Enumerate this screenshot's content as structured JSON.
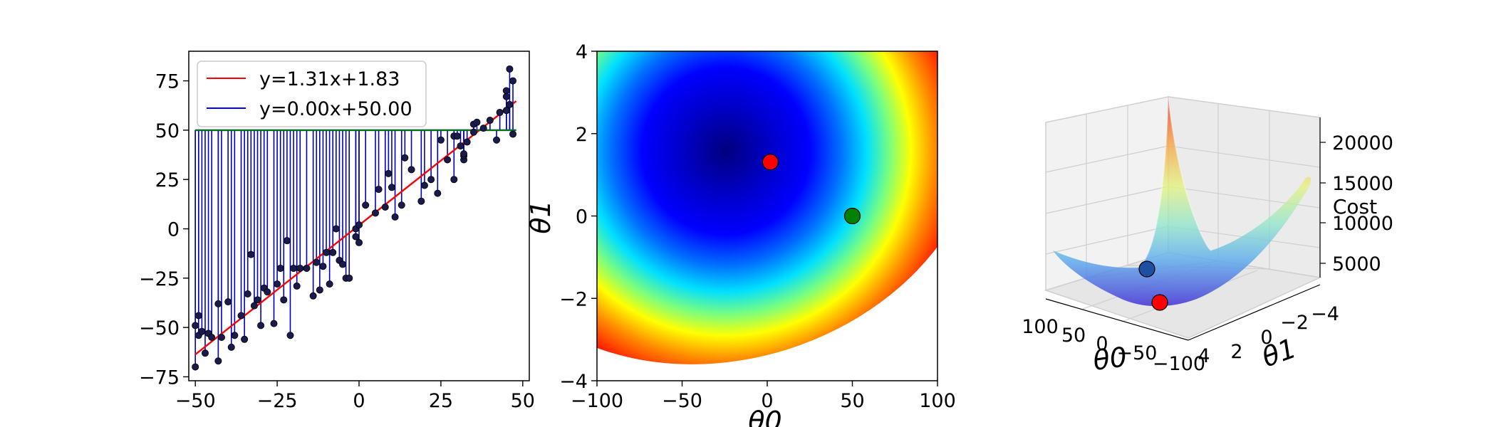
{
  "chart_data": [
    {
      "type": "scatter",
      "xlim": [
        -52,
        52
      ],
      "ylim": [
        -77,
        90
      ],
      "x_ticks": [
        -50,
        -25,
        0,
        25,
        50
      ],
      "x_tick_labels": [
        "−50",
        "−25",
        "0",
        "25",
        "50"
      ],
      "y_ticks": [
        -75,
        -50,
        -25,
        0,
        25,
        50,
        75
      ],
      "y_tick_labels": [
        "−75",
        "−50",
        "−25",
        "0",
        "25",
        "50",
        "75"
      ],
      "grid": false,
      "legend_position": "top-left",
      "legend": [
        "y=1.31x+1.83",
        "y=0.00x+50.00"
      ],
      "series": [
        {
          "name": "y=1.31x+1.83",
          "kind": "line",
          "color": "#ff0000",
          "slope": 1.31,
          "intercept": 1.83,
          "x_range": [
            -50,
            48
          ]
        },
        {
          "name": "y=0.00x+50.00",
          "kind": "line",
          "color": "#0000ff",
          "slope": 0.0,
          "intercept": 50.0,
          "x_range": [
            -50,
            48
          ]
        },
        {
          "kind": "horizontal-line",
          "color": "#008000",
          "y": 50,
          "x_range": [
            -50,
            48
          ]
        }
      ],
      "residual_color": "#0000bb",
      "point_color": "#1a1a4d",
      "points": [
        [
          -50,
          -70
        ],
        [
          -50,
          -49
        ],
        [
          -49,
          -44
        ],
        [
          -49,
          -54
        ],
        [
          -48,
          -52
        ],
        [
          -47,
          -63
        ],
        [
          -46,
          -53
        ],
        [
          -45,
          -55
        ],
        [
          -43,
          -67
        ],
        [
          -43,
          -38
        ],
        [
          -42,
          -55
        ],
        [
          -40,
          -37
        ],
        [
          -39,
          -60
        ],
        [
          -38,
          -54
        ],
        [
          -36,
          -44
        ],
        [
          -35,
          -56
        ],
        [
          -34,
          -33
        ],
        [
          -33,
          -13
        ],
        [
          -32,
          -39
        ],
        [
          -31,
          -36
        ],
        [
          -30,
          -49
        ],
        [
          -29,
          -30
        ],
        [
          -28,
          -32
        ],
        [
          -26,
          -48
        ],
        [
          -25,
          -28
        ],
        [
          -24,
          -20
        ],
        [
          -23,
          -36
        ],
        [
          -22,
          -6
        ],
        [
          -21,
          -54
        ],
        [
          -20,
          -20
        ],
        [
          -19,
          -29
        ],
        [
          -18,
          -20
        ],
        [
          -16,
          -20
        ],
        [
          -14,
          -34
        ],
        [
          -13,
          -17
        ],
        [
          -12,
          -31
        ],
        [
          -11,
          -19
        ],
        [
          -10,
          -12
        ],
        [
          -9,
          -28
        ],
        [
          -8,
          -12
        ],
        [
          -7,
          0
        ],
        [
          -6,
          -16
        ],
        [
          -5,
          -18
        ],
        [
          -4,
          -25
        ],
        [
          -3,
          -25
        ],
        [
          -1,
          -4
        ],
        [
          -1,
          0
        ],
        [
          0,
          -7
        ],
        [
          0,
          2
        ],
        [
          2,
          12
        ],
        [
          5,
          8
        ],
        [
          6,
          20
        ],
        [
          8,
          11
        ],
        [
          9,
          28
        ],
        [
          10,
          21
        ],
        [
          11,
          6
        ],
        [
          13,
          12
        ],
        [
          14,
          36
        ],
        [
          16,
          30
        ],
        [
          19,
          14
        ],
        [
          20,
          22
        ],
        [
          22,
          25
        ],
        [
          24,
          18
        ],
        [
          25,
          45
        ],
        [
          27,
          35
        ],
        [
          29,
          47
        ],
        [
          29,
          25
        ],
        [
          30,
          47
        ],
        [
          31,
          42
        ],
        [
          32,
          35
        ],
        [
          32,
          37
        ],
        [
          32,
          38
        ],
        [
          33,
          44
        ],
        [
          35,
          53
        ],
        [
          35,
          49
        ],
        [
          36,
          54
        ],
        [
          38,
          51
        ],
        [
          40,
          55
        ],
        [
          42,
          45
        ],
        [
          43,
          59
        ],
        [
          45,
          60
        ],
        [
          45,
          70
        ],
        [
          45,
          67
        ],
        [
          46,
          63
        ],
        [
          46,
          81
        ],
        [
          47,
          48
        ],
        [
          47,
          75
        ]
      ]
    },
    {
      "type": "heatmap",
      "colormap": "jet",
      "xlim": [
        -100,
        100
      ],
      "ylim": [
        -4,
        4
      ],
      "x_ticks": [
        -100,
        -50,
        0,
        50,
        100
      ],
      "x_tick_labels": [
        "−100",
        "−50",
        "0",
        "50",
        "100"
      ],
      "y_ticks": [
        -4,
        -2,
        0,
        2,
        4
      ],
      "y_tick_labels": [
        "−4",
        "−2",
        "0",
        "2",
        "4"
      ],
      "xlabel": "θ0",
      "ylabel": "θ1",
      "minimum": [
        1.83,
        1.31
      ],
      "markers": [
        {
          "theta0": 1.83,
          "theta1": 1.31,
          "color": "#ff0000"
        },
        {
          "theta0": 50,
          "theta1": 0,
          "color": "#008000"
        }
      ]
    },
    {
      "type": "surface",
      "colormap": "jet",
      "xlabel": "θ0",
      "ylabel": "θ1",
      "zlabel": "Cost",
      "theta0_range": [
        -100,
        100
      ],
      "theta1_range": [
        -4,
        4
      ],
      "x_tick_labels": [
        "100",
        "50",
        "0",
        "−50",
        "−100"
      ],
      "y_tick_labels": [
        "4",
        "2",
        "0",
        "−2",
        "−4"
      ],
      "z_tick_labels": [
        "5000",
        "10000",
        "15000",
        "20000"
      ],
      "markers": [
        {
          "theta0": 1.83,
          "theta1": 1.31,
          "color": "#ff0000"
        },
        {
          "theta0": 50,
          "theta1": 0,
          "color": "#1f4fa0"
        }
      ]
    }
  ]
}
